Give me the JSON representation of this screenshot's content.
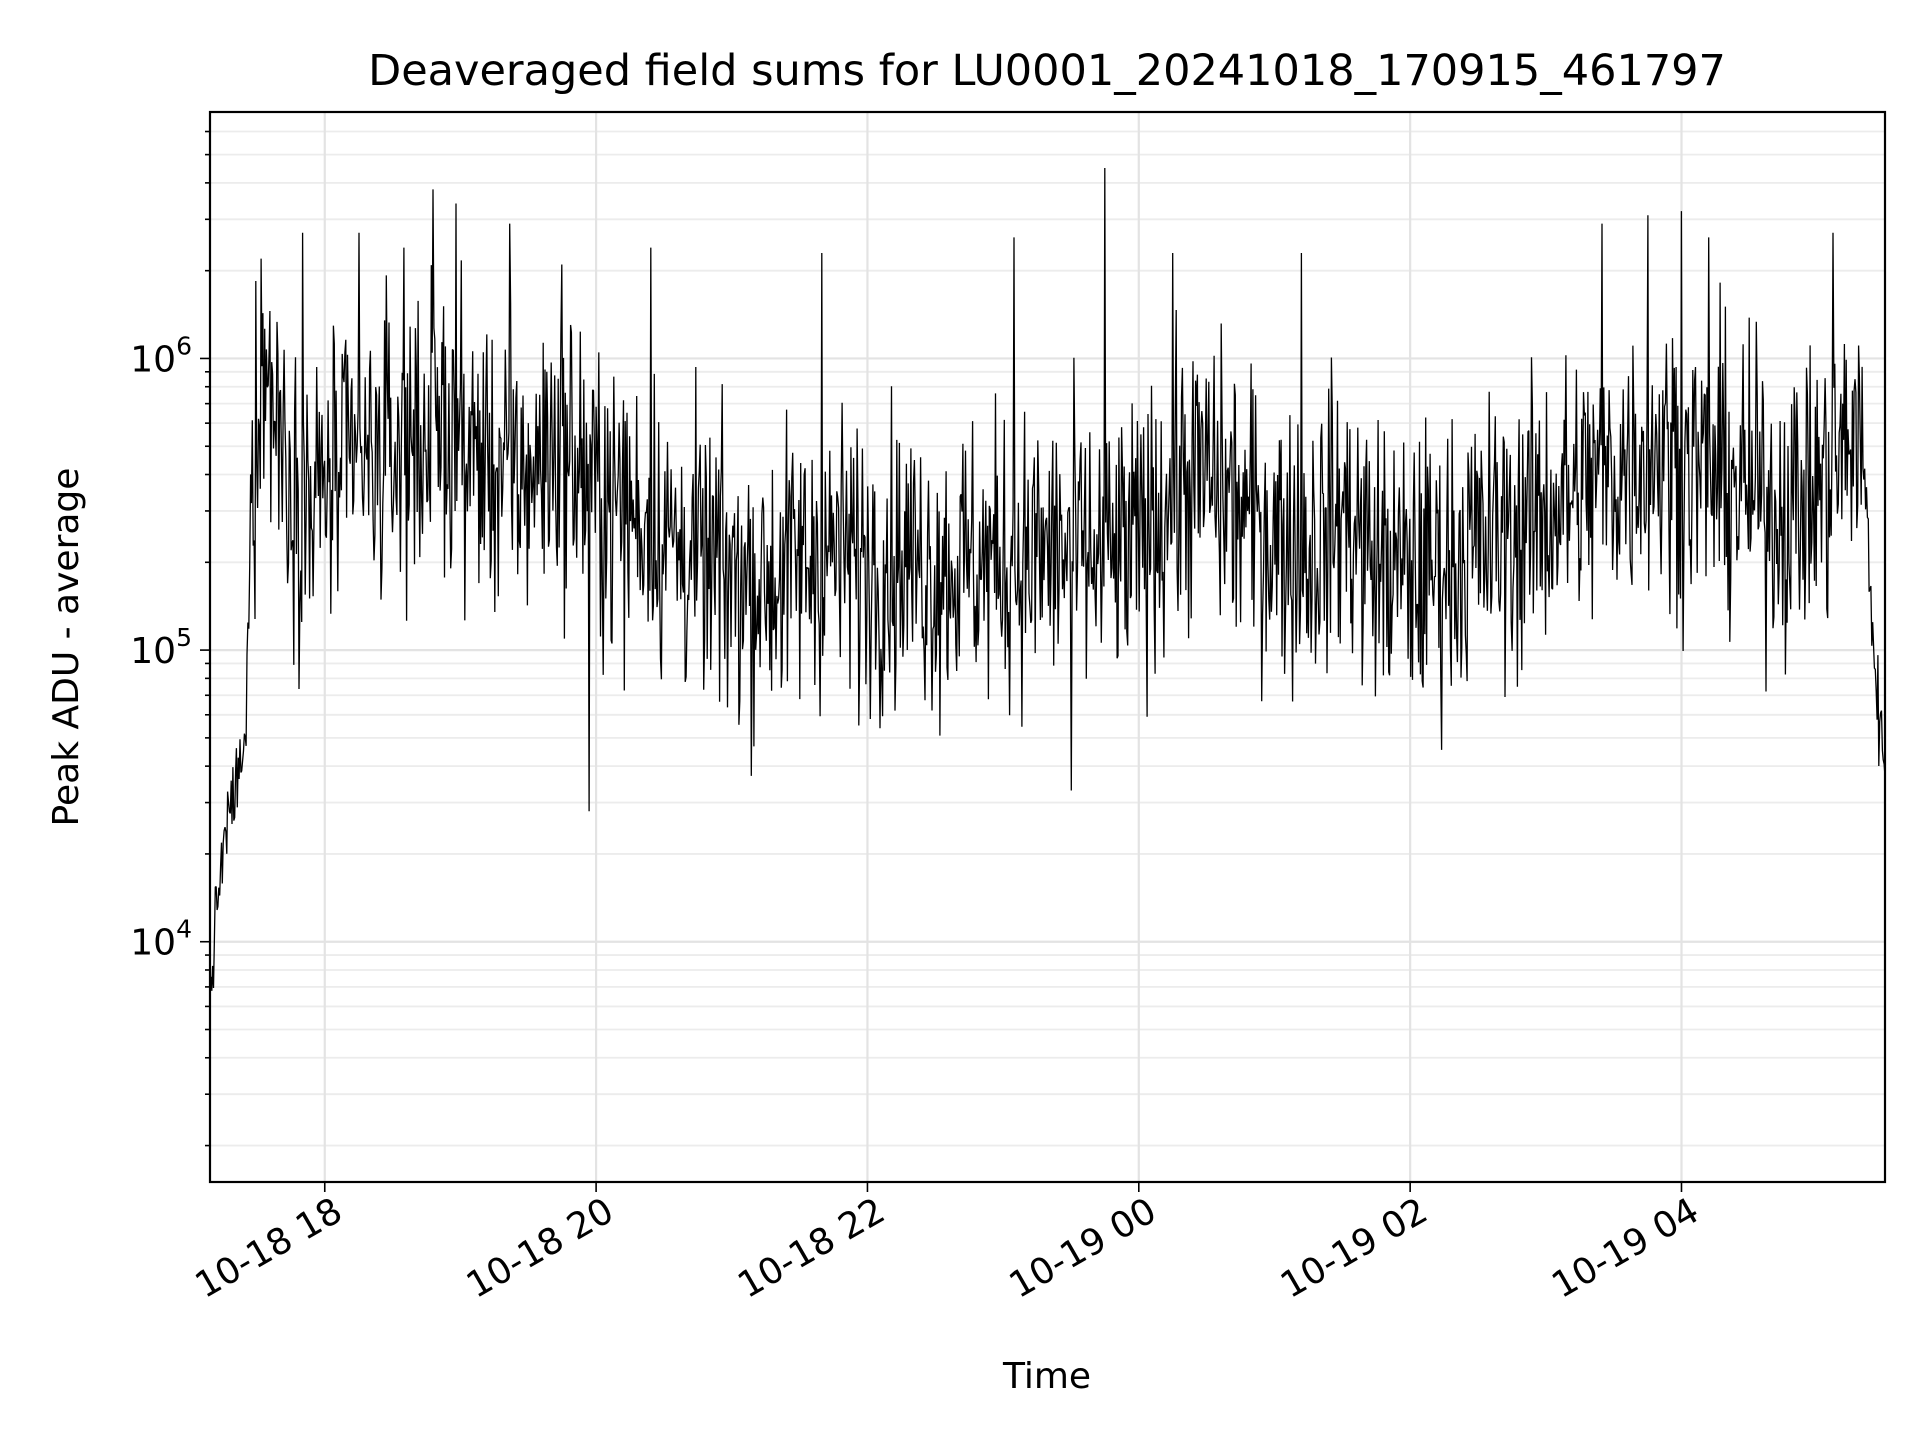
{
  "chart_data": {
    "type": "line",
    "title": "Deaveraged field sums for LU0001_20241018_170915_461797",
    "xlabel": "Time",
    "ylabel": "Peak ADU - average",
    "x_scale": "time",
    "y_scale": "log",
    "xlim": [
      "2024-10-18T17:09:15",
      "2024-10-19T05:30:00"
    ],
    "ylim": [
      1500,
      7000000
    ],
    "x_ticks": [
      {
        "value": "2024-10-18T18:00:00",
        "label": "10-18 18"
      },
      {
        "value": "2024-10-18T20:00:00",
        "label": "10-18 20"
      },
      {
        "value": "2024-10-18T22:00:00",
        "label": "10-18 22"
      },
      {
        "value": "2024-10-19T00:00:00",
        "label": "10-19 00"
      },
      {
        "value": "2024-10-19T02:00:00",
        "label": "10-19 02"
      },
      {
        "value": "2024-10-19T04:00:00",
        "label": "10-19 04"
      }
    ],
    "y_ticks": [
      {
        "value": 10000,
        "base": "10",
        "exp": "4"
      },
      {
        "value": 100000,
        "base": "10",
        "exp": "5"
      },
      {
        "value": 1000000,
        "base": "10",
        "exp": "6"
      }
    ],
    "grid": true,
    "series": [
      {
        "color": "#000000",
        "x": [
          "2024-10-18T17:09:15",
          "2024-10-18T17:11:00",
          "2024-10-18T17:13:00",
          "2024-10-18T17:15:00",
          "2024-10-18T17:17:00",
          "2024-10-18T17:19:00",
          "2024-10-18T17:21:00",
          "2024-10-18T17:23:00",
          "2024-10-18T17:25:00",
          "2024-10-18T17:27:00",
          "2024-10-18T17:30:00",
          "2024-10-18T17:35:00",
          "2024-10-18T17:40:00",
          "2024-10-18T17:45:00",
          "2024-10-18T17:50:00",
          "2024-10-18T17:55:00",
          "2024-10-18T18:00:00",
          "2024-10-18T18:10:00",
          "2024-10-18T18:20:00",
          "2024-10-18T18:30:00",
          "2024-10-18T18:40:00",
          "2024-10-18T18:50:00",
          "2024-10-18T19:00:00",
          "2024-10-18T19:10:00",
          "2024-10-18T19:20:00",
          "2024-10-18T19:30:00",
          "2024-10-18T19:40:00",
          "2024-10-18T19:50:00",
          "2024-10-18T20:00:00",
          "2024-10-18T20:15:00",
          "2024-10-18T20:30:00",
          "2024-10-18T20:45:00",
          "2024-10-18T21:00:00",
          "2024-10-18T21:15:00",
          "2024-10-18T21:30:00",
          "2024-10-18T21:45:00",
          "2024-10-18T22:00:00",
          "2024-10-18T22:15:00",
          "2024-10-18T22:30:00",
          "2024-10-18T22:45:00",
          "2024-10-18T23:00:00",
          "2024-10-18T23:15:00",
          "2024-10-18T23:30:00",
          "2024-10-18T23:45:00",
          "2024-10-19T00:00:00",
          "2024-10-19T00:15:00",
          "2024-10-19T00:30:00",
          "2024-10-19T00:45:00",
          "2024-10-19T01:00:00",
          "2024-10-19T01:15:00",
          "2024-10-19T01:30:00",
          "2024-10-19T01:45:00",
          "2024-10-19T02:00:00",
          "2024-10-19T02:15:00",
          "2024-10-19T02:30:00",
          "2024-10-19T02:45:00",
          "2024-10-19T03:00:00",
          "2024-10-19T03:15:00",
          "2024-10-19T03:30:00",
          "2024-10-19T03:45:00",
          "2024-10-19T04:00:00",
          "2024-10-19T04:15:00",
          "2024-10-19T04:30:00",
          "2024-10-19T04:45:00",
          "2024-10-19T05:00:00",
          "2024-10-19T05:10:00",
          "2024-10-19T05:18:00",
          "2024-10-19T05:22:00",
          "2024-10-19T05:25:00",
          "2024-10-19T05:28:00",
          "2024-10-19T05:30:00"
        ],
        "y": [
          6000,
          10000,
          15000,
          20000,
          25000,
          30000,
          35000,
          40000,
          45000,
          250000,
          700000,
          900000,
          600000,
          400000,
          350000,
          300000,
          380000,
          400000,
          420000,
          480000,
          550000,
          600000,
          500000,
          450000,
          400000,
          400000,
          500000,
          450000,
          350000,
          300000,
          250000,
          200000,
          180000,
          170000,
          200000,
          220000,
          200000,
          210000,
          190000,
          200000,
          200000,
          210000,
          220000,
          200000,
          230000,
          350000,
          400000,
          300000,
          250000,
          220000,
          300000,
          200000,
          180000,
          200000,
          230000,
          250000,
          300000,
          350000,
          400000,
          500000,
          450000,
          400000,
          350000,
          300000,
          350000,
          450000,
          600000,
          300000,
          100000,
          50000,
          40000
        ],
        "noise_log10_amplitude": 0.45,
        "spikes": [
          {
            "x": "2024-10-18T17:32:00",
            "y": 2200000
          },
          {
            "x": "2024-10-18T17:50:00",
            "y": 2700000
          },
          {
            "x": "2024-10-18T18:15:00",
            "y": 2700000
          },
          {
            "x": "2024-10-18T18:35:00",
            "y": 2400000
          },
          {
            "x": "2024-10-18T18:48:00",
            "y": 3800000
          },
          {
            "x": "2024-10-18T18:58:00",
            "y": 3400000
          },
          {
            "x": "2024-10-18T19:22:00",
            "y": 2900000
          },
          {
            "x": "2024-10-18T19:45:00",
            "y": 2100000
          },
          {
            "x": "2024-10-18T19:57:00",
            "y": 28000
          },
          {
            "x": "2024-10-18T20:24:00",
            "y": 2400000
          },
          {
            "x": "2024-10-18T21:40:00",
            "y": 2300000
          },
          {
            "x": "2024-10-18T23:05:00",
            "y": 2600000
          },
          {
            "x": "2024-10-18T23:45:00",
            "y": 4500000
          },
          {
            "x": "2024-10-18T23:30:00",
            "y": 33000
          },
          {
            "x": "2024-10-19T00:15:00",
            "y": 2300000
          },
          {
            "x": "2024-10-19T01:12:00",
            "y": 2300000
          },
          {
            "x": "2024-10-19T03:25:00",
            "y": 2900000
          },
          {
            "x": "2024-10-19T03:45:00",
            "y": 3100000
          },
          {
            "x": "2024-10-19T04:00:00",
            "y": 3200000
          },
          {
            "x": "2024-10-19T04:12:00",
            "y": 2600000
          },
          {
            "x": "2024-10-19T05:07:00",
            "y": 2700000
          }
        ]
      }
    ]
  }
}
